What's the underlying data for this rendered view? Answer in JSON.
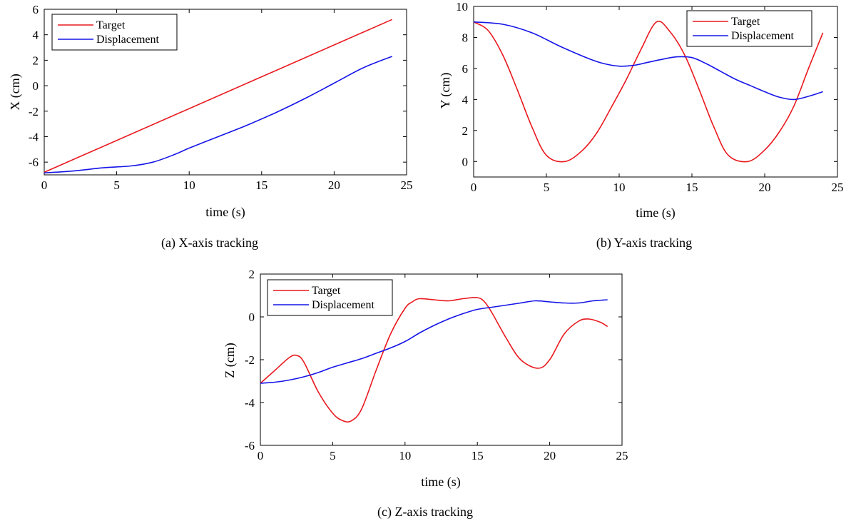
{
  "chart_data": [
    {
      "id": "x",
      "type": "line",
      "caption": "(a) X-axis tracking",
      "xlabel": "time (s)",
      "ylabel": "X (cm)",
      "xlim": [
        0,
        25
      ],
      "ylim": [
        -7,
        6
      ],
      "xticks": [
        0,
        5,
        10,
        15,
        20,
        25
      ],
      "yticks": [
        -6,
        -4,
        -2,
        0,
        2,
        4,
        6
      ],
      "legend": "top-left",
      "grid": false,
      "series": [
        {
          "name": "Target",
          "color": "#e8191f",
          "x": [
            0,
            24
          ],
          "y": [
            -6.8,
            5.2
          ]
        },
        {
          "name": "Displacement",
          "color": "#1515e8",
          "x": [
            0,
            2,
            4,
            6,
            7.5,
            9,
            10,
            12,
            14,
            16,
            18,
            20,
            22,
            24
          ],
          "y": [
            -6.85,
            -6.7,
            -6.45,
            -6.3,
            -6.0,
            -5.4,
            -4.9,
            -4.0,
            -3.1,
            -2.1,
            -1.0,
            0.2,
            1.4,
            2.3
          ]
        }
      ]
    },
    {
      "id": "y",
      "type": "line",
      "caption": "(b) Y-axis tracking",
      "xlabel": "time (s)",
      "ylabel": "Y (cm)",
      "xlim": [
        0,
        25
      ],
      "ylim": [
        -1,
        10
      ],
      "xticks": [
        0,
        5,
        10,
        15,
        20,
        25
      ],
      "yticks": [
        0,
        2,
        4,
        6,
        8,
        10
      ],
      "legend": "top-right",
      "grid": false,
      "series": [
        {
          "name": "Target",
          "color": "#e8191f",
          "x": [
            0,
            1,
            2,
            3,
            4,
            5,
            6.28,
            7.5,
            8.5,
            9.5,
            10.5,
            11.5,
            12.57,
            13.5,
            14.5,
            15.5,
            16.5,
            17.5,
            18.85,
            20,
            21,
            22,
            23,
            24
          ],
          "y": [
            9.0,
            8.44,
            6.87,
            4.63,
            2.24,
            0.4,
            0.0,
            0.74,
            1.9,
            3.56,
            5.3,
            7.23,
            9.0,
            8.36,
            6.87,
            4.63,
            2.24,
            0.4,
            0.0,
            0.74,
            1.9,
            3.56,
            5.97,
            8.3
          ]
        },
        {
          "name": "Displacement",
          "color": "#1515e8",
          "x": [
            0,
            2,
            4,
            6,
            8,
            9,
            10,
            11,
            12,
            13,
            14,
            15,
            16,
            17,
            18,
            19,
            20,
            21,
            22,
            23,
            24
          ],
          "y": [
            9.0,
            8.85,
            8.3,
            7.4,
            6.6,
            6.3,
            6.15,
            6.2,
            6.4,
            6.6,
            6.75,
            6.7,
            6.3,
            5.8,
            5.3,
            4.9,
            4.5,
            4.15,
            4.0,
            4.2,
            4.5
          ]
        }
      ]
    },
    {
      "id": "z",
      "type": "line",
      "caption": "(c) Z-axis tracking",
      "xlabel": "time (s)",
      "ylabel": "Z (cm)",
      "xlim": [
        0,
        25
      ],
      "ylim": [
        -6,
        2
      ],
      "xticks": [
        0,
        5,
        10,
        15,
        20,
        25
      ],
      "yticks": [
        -6,
        -4,
        -2,
        0,
        2
      ],
      "legend": "top-left",
      "grid": false,
      "series": [
        {
          "name": "Target",
          "color": "#e8191f",
          "x": [
            0,
            1,
            2,
            2.5,
            3,
            4,
            5,
            5.7,
            6.3,
            7,
            8,
            9,
            10,
            10.5,
            11,
            12,
            13,
            14,
            15,
            15.5,
            16,
            17,
            18,
            19.2,
            20,
            21,
            22,
            22.7,
            23.5,
            24
          ],
          "y": [
            -3.1,
            -2.5,
            -1.9,
            -1.8,
            -2.1,
            -3.5,
            -4.5,
            -4.85,
            -4.85,
            -4.3,
            -2.5,
            -0.8,
            0.4,
            0.7,
            0.85,
            0.8,
            0.75,
            0.85,
            0.9,
            0.7,
            0.2,
            -1.0,
            -2.0,
            -2.4,
            -2.0,
            -0.8,
            -0.2,
            -0.1,
            -0.25,
            -0.45
          ]
        },
        {
          "name": "Displacement",
          "color": "#1515e8",
          "x": [
            0,
            1,
            2,
            3,
            4,
            5,
            6,
            7,
            8,
            9,
            10,
            11,
            12,
            13,
            14,
            15,
            16,
            17,
            18,
            19,
            20,
            21,
            22,
            23,
            24
          ],
          "y": [
            -3.1,
            -3.05,
            -2.95,
            -2.8,
            -2.6,
            -2.35,
            -2.15,
            -1.95,
            -1.7,
            -1.45,
            -1.15,
            -0.75,
            -0.4,
            -0.1,
            0.15,
            0.35,
            0.45,
            0.55,
            0.65,
            0.75,
            0.7,
            0.65,
            0.65,
            0.75,
            0.8
          ]
        }
      ]
    }
  ]
}
